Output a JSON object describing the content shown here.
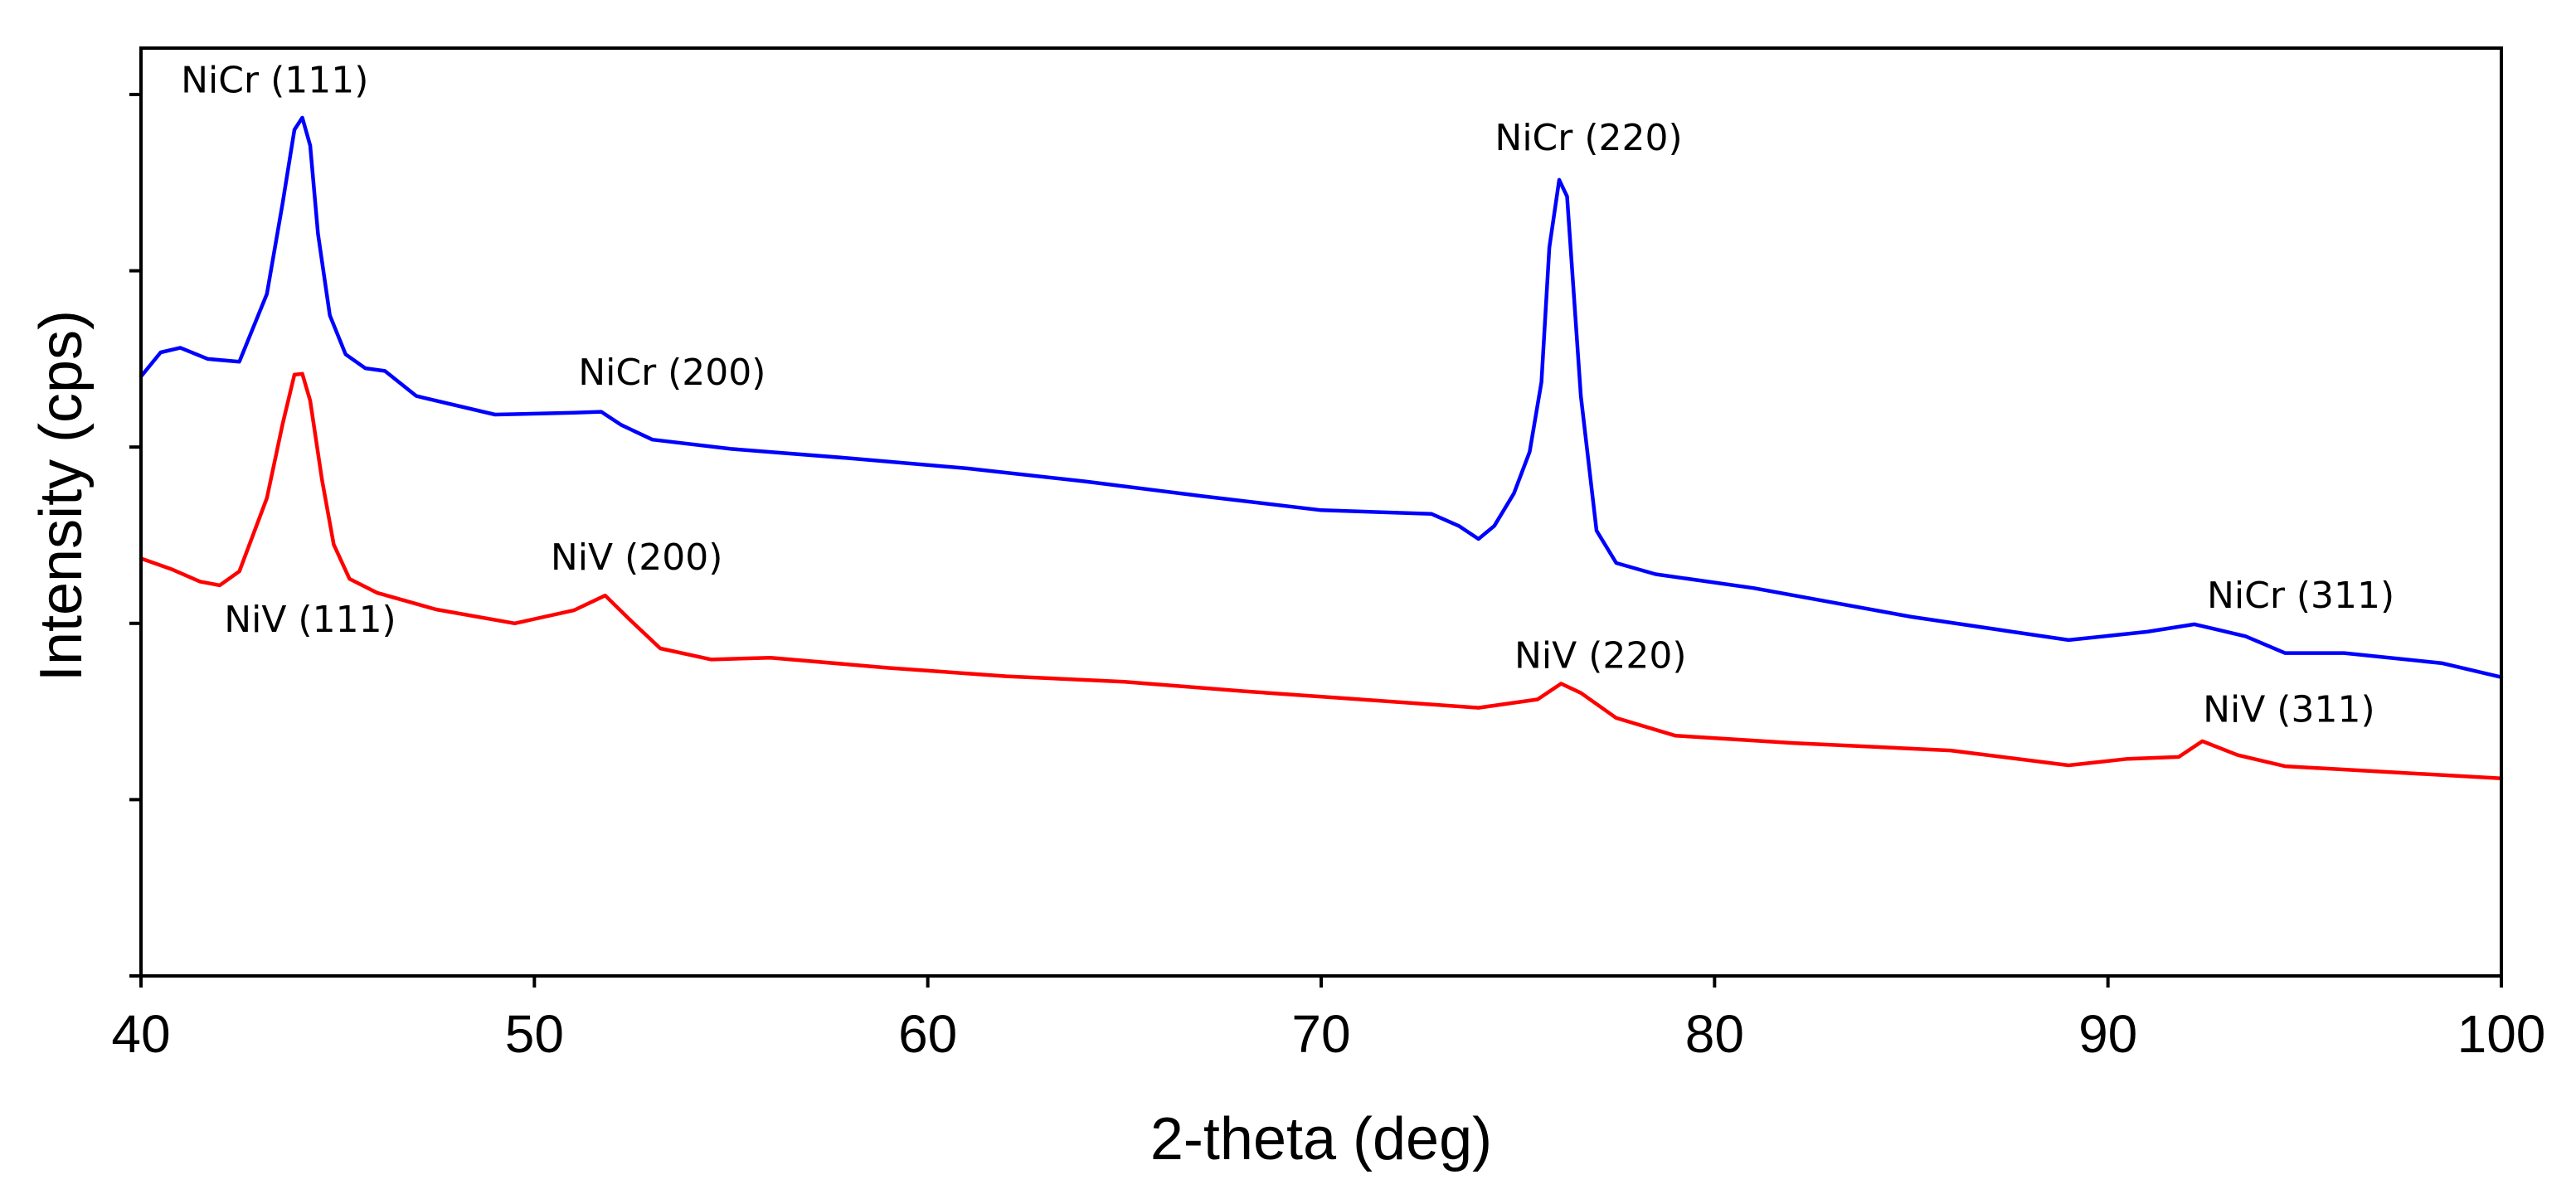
{
  "chart_data": {
    "type": "line",
    "title": "",
    "xlabel": "2-theta (deg)",
    "ylabel": "Intensity (cps)",
    "xlim": [
      40,
      100
    ],
    "ylim": [
      0,
      100
    ],
    "x_ticks": [
      40,
      50,
      60,
      70,
      80,
      90,
      100
    ],
    "x_tick_labels": [
      "40",
      "50",
      "60",
      "70",
      "80",
      "90",
      "100"
    ],
    "y_ticks": [
      0,
      19,
      38,
      57,
      76,
      95
    ],
    "grid": false,
    "legend": "none",
    "series": [
      {
        "name": "NiCr",
        "color": "#0000ff",
        "x": [
          40,
          40.5,
          41,
          41.7,
          42.5,
          43.2,
          43.6,
          43.9,
          44.1,
          44.3,
          44.5,
          44.8,
          45.2,
          45.7,
          46.2,
          47,
          49,
          51,
          51.7,
          52.2,
          53,
          55,
          58,
          61,
          64,
          67,
          70,
          72.8,
          73.5,
          74,
          74.4,
          74.9,
          75.3,
          75.6,
          75.8,
          76.05,
          76.25,
          76.6,
          77,
          77.5,
          78.5,
          81,
          85,
          89,
          91,
          92.2,
          93.5,
          94.5,
          96,
          98.5,
          100
        ],
        "y": [
          64.6,
          67.2,
          67.7,
          66.5,
          66.2,
          73.5,
          83.3,
          91.2,
          92.5,
          89.5,
          80,
          71.2,
          67,
          65.5,
          65.2,
          62.5,
          60.5,
          60.7,
          60.8,
          59.4,
          57.8,
          56.8,
          55.8,
          54.7,
          53.3,
          51.7,
          50.2,
          49.8,
          48.5,
          47.1,
          48.5,
          52,
          56.5,
          64,
          78.5,
          85.8,
          84,
          62.5,
          48,
          44.5,
          43.3,
          41.8,
          38.7,
          36.2,
          37.1,
          37.9,
          36.6,
          34.8,
          34.8,
          33.7,
          32.2
        ]
      },
      {
        "name": "NiV",
        "color": "#ff0000",
        "x": [
          40,
          40.8,
          41.5,
          42,
          42.5,
          43.2,
          43.6,
          43.9,
          44.1,
          44.3,
          44.6,
          44.9,
          45.3,
          46,
          47.5,
          49.5,
          51,
          51.8,
          52.4,
          53.2,
          54.5,
          56,
          59,
          62,
          65,
          68,
          71,
          74,
          75.5,
          76.1,
          76.6,
          77.5,
          79,
          82,
          86,
          89,
          90.5,
          91.8,
          92.4,
          93.3,
          94.5,
          97,
          100
        ],
        "y": [
          45,
          43.8,
          42.5,
          42.1,
          43.6,
          51.5,
          59.5,
          64.8,
          64.9,
          62,
          53.5,
          46.5,
          42.8,
          41.3,
          39.5,
          38,
          39.4,
          41,
          38.5,
          35.3,
          34.1,
          34.3,
          33.2,
          32.3,
          31.7,
          30.7,
          29.8,
          28.9,
          29.8,
          31.5,
          30.5,
          27.8,
          25.9,
          25.1,
          24.3,
          22.7,
          23.4,
          23.6,
          25.3,
          23.8,
          22.6,
          22,
          21.3
        ]
      }
    ],
    "annotations": [
      {
        "text": "NiCr (111)",
        "x": 43.4,
        "y": 95.2,
        "series": "NiCr"
      },
      {
        "text": "NiCr (200)",
        "x": 53.5,
        "y": 63.7,
        "series": "NiCr"
      },
      {
        "text": "NiCr (220)",
        "x": 76.8,
        "y": 89,
        "series": "NiCr"
      },
      {
        "text": "NiCr (311)",
        "x": 94.9,
        "y": 39.7,
        "series": "NiCr"
      },
      {
        "text": "NiV (111)",
        "x": 44.3,
        "y": 37.1,
        "series": "NiV"
      },
      {
        "text": "NiV (200)",
        "x": 52.6,
        "y": 43.8,
        "series": "NiV"
      },
      {
        "text": "NiV (220)",
        "x": 77.1,
        "y": 33.2,
        "series": "NiV"
      },
      {
        "text": "NiV (311)",
        "x": 94.6,
        "y": 27.4,
        "series": "NiV"
      }
    ]
  }
}
